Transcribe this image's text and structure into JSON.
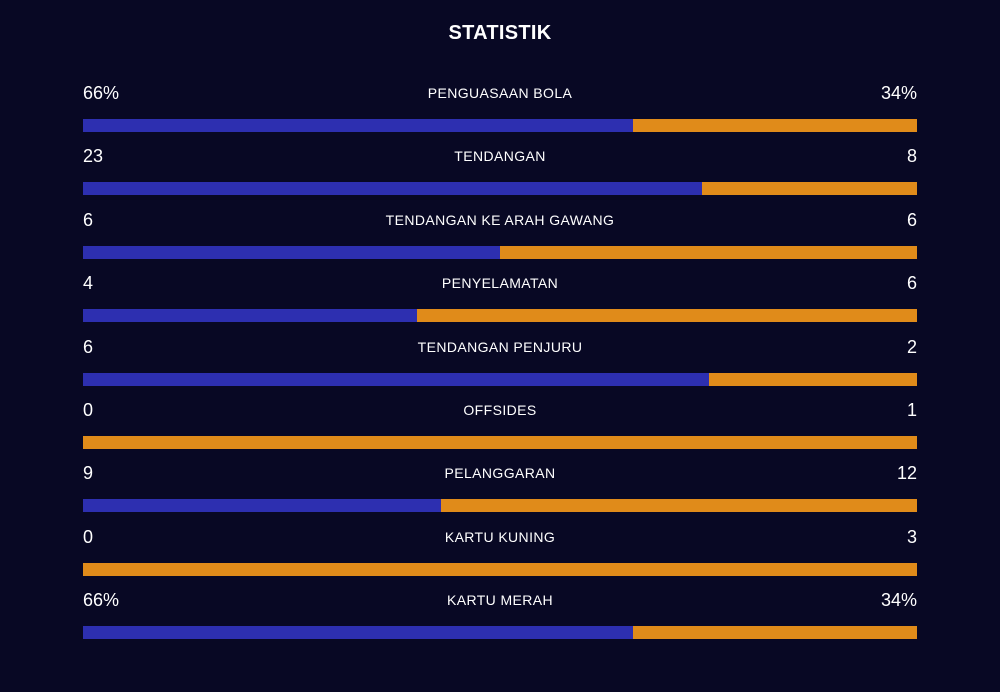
{
  "title": "STATISTIK",
  "colors": {
    "background": "#080824",
    "home": "#2d2fb0",
    "away": "#e08b1a"
  },
  "stats": [
    {
      "label": "PENGUASAAN BOLA",
      "home": "66%",
      "away": "34%",
      "home_share": 0.66
    },
    {
      "label": "TENDANGAN",
      "home": "23",
      "away": "8",
      "home_share": 0.742
    },
    {
      "label": "TENDANGAN KE ARAH GAWANG",
      "home": "6",
      "away": "6",
      "home_share": 0.5
    },
    {
      "label": "PENYELAMATAN",
      "home": "4",
      "away": "6",
      "home_share": 0.4
    },
    {
      "label": "TENDANGAN PENJURU",
      "home": "6",
      "away": "2",
      "home_share": 0.75
    },
    {
      "label": "OFFSIDES",
      "home": "0",
      "away": "1",
      "home_share": 0
    },
    {
      "label": "PELANGGARAN",
      "home": "9",
      "away": "12",
      "home_share": 0.429
    },
    {
      "label": "KARTU KUNING",
      "home": "0",
      "away": "3",
      "home_share": 0
    },
    {
      "label": "KARTU MERAH",
      "home": "66%",
      "away": "34%",
      "home_share": 0.66
    }
  ]
}
